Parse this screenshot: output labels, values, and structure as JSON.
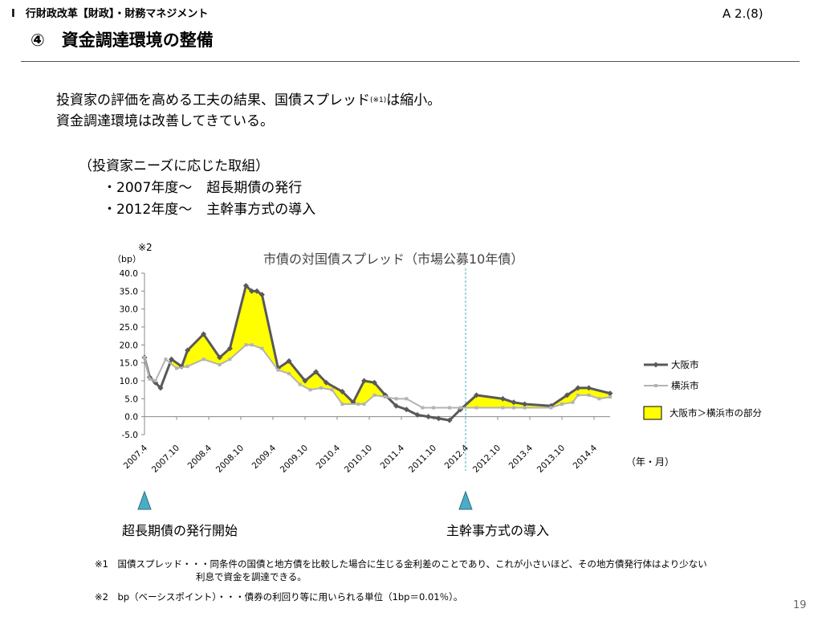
{
  "header": {
    "section": "Ⅰ　行財政改革【財政】・財務マネジメント",
    "page_ref": "A 2.(8)",
    "title": "④　資金調達環境の整備"
  },
  "lead": {
    "line1_a": "投資家の評価を高める工夫の結果、国債スプレッド",
    "line1_note": "(※1)",
    "line1_b": "は縮小。",
    "line2": "資金調達環境は改善してきている。"
  },
  "initiatives": {
    "title": "（投資家ニーズに応じた取組）",
    "items": [
      {
        "period": "・2007年度～",
        "text": "超長期債の発行"
      },
      {
        "period": "・2012年度～",
        "text": "主幹事方式の導入"
      }
    ]
  },
  "chart_data": {
    "type": "line",
    "title": "市債の対国債スプレッド（市場公募10年債）",
    "ylabel": "（bp）",
    "ylabel_note": "※2",
    "xlabel": "（年・月）",
    "ylim": [
      -5,
      40
    ],
    "xlim": [
      2007.25,
      2014.5
    ],
    "yticks": [
      "40.0",
      "35.0",
      "30.0",
      "25.0",
      "20.0",
      "15.0",
      "10.0",
      "5.0",
      "0.0",
      "-5.0"
    ],
    "xticks": [
      {
        "label": "2007.4",
        "x": 2007.25
      },
      {
        "label": "2007.10",
        "x": 2007.75
      },
      {
        "label": "2008.4",
        "x": 2008.25
      },
      {
        "label": "2008.10",
        "x": 2008.75
      },
      {
        "label": "2009.4",
        "x": 2009.25
      },
      {
        "label": "2009.10",
        "x": 2009.75
      },
      {
        "label": "2010.4",
        "x": 2010.25
      },
      {
        "label": "2010.10",
        "x": 2010.75
      },
      {
        "label": "2011.4",
        "x": 2011.25
      },
      {
        "label": "2011.10",
        "x": 2011.75
      },
      {
        "label": "2012.4",
        "x": 2012.25
      },
      {
        "label": "2012.10",
        "x": 2012.75
      },
      {
        "label": "2013.4",
        "x": 2013.25
      },
      {
        "label": "2013.10",
        "x": 2013.75
      },
      {
        "label": "2014.4",
        "x": 2014.25
      }
    ],
    "series": [
      {
        "name": "大阪市",
        "color": "#595959",
        "points": [
          [
            2007.25,
            16.5
          ],
          [
            2007.33,
            11
          ],
          [
            2007.42,
            9.5
          ],
          [
            2007.5,
            8
          ],
          [
            2007.67,
            16
          ],
          [
            2007.83,
            14
          ],
          [
            2007.92,
            18.5
          ],
          [
            2008.17,
            23
          ],
          [
            2008.42,
            16.5
          ],
          [
            2008.58,
            19
          ],
          [
            2008.83,
            36.5
          ],
          [
            2008.92,
            35
          ],
          [
            2009.0,
            35
          ],
          [
            2009.08,
            34
          ],
          [
            2009.33,
            13.5
          ],
          [
            2009.5,
            15.5
          ],
          [
            2009.75,
            10
          ],
          [
            2009.92,
            12.5
          ],
          [
            2010.08,
            9.5
          ],
          [
            2010.33,
            7
          ],
          [
            2010.5,
            4
          ],
          [
            2010.67,
            10
          ],
          [
            2010.83,
            9.5
          ],
          [
            2011.0,
            6
          ],
          [
            2011.17,
            3
          ],
          [
            2011.33,
            2
          ],
          [
            2011.5,
            0.5
          ],
          [
            2011.67,
            0
          ],
          [
            2011.83,
            -0.5
          ],
          [
            2012.0,
            -1
          ],
          [
            2012.17,
            2
          ],
          [
            2012.42,
            6
          ],
          [
            2012.83,
            5
          ],
          [
            2013.0,
            4
          ],
          [
            2013.17,
            3.5
          ],
          [
            2013.58,
            3
          ],
          [
            2013.83,
            6
          ],
          [
            2014.0,
            8
          ],
          [
            2014.17,
            8
          ],
          [
            2014.5,
            6.5
          ]
        ]
      },
      {
        "name": "横浜市",
        "color": "#b3b3b3",
        "points": [
          [
            2007.25,
            16.5
          ],
          [
            2007.33,
            10.5
          ],
          [
            2007.42,
            10
          ],
          [
            2007.58,
            16
          ],
          [
            2007.75,
            13.5
          ],
          [
            2007.92,
            14
          ],
          [
            2008.17,
            16
          ],
          [
            2008.42,
            14.5
          ],
          [
            2008.58,
            16
          ],
          [
            2008.83,
            20
          ],
          [
            2008.92,
            20
          ],
          [
            2009.08,
            19
          ],
          [
            2009.33,
            13
          ],
          [
            2009.5,
            12
          ],
          [
            2009.67,
            9
          ],
          [
            2009.83,
            7.5
          ],
          [
            2010.0,
            8
          ],
          [
            2010.17,
            7.5
          ],
          [
            2010.33,
            3.5
          ],
          [
            2010.58,
            3.5
          ],
          [
            2010.67,
            3.5
          ],
          [
            2010.83,
            6
          ],
          [
            2011.0,
            5.5
          ],
          [
            2011.17,
            5
          ],
          [
            2011.33,
            5
          ],
          [
            2011.58,
            2.5
          ],
          [
            2011.75,
            2.5
          ],
          [
            2012.0,
            2.5
          ],
          [
            2012.17,
            2.5
          ],
          [
            2012.42,
            2.5
          ],
          [
            2012.83,
            2.5
          ],
          [
            2013.0,
            2.5
          ],
          [
            2013.17,
            2.5
          ],
          [
            2013.58,
            2.5
          ],
          [
            2013.75,
            3.5
          ],
          [
            2013.92,
            4
          ],
          [
            2014.0,
            6
          ],
          [
            2014.17,
            6
          ],
          [
            2014.33,
            5
          ],
          [
            2014.5,
            5.5
          ]
        ]
      }
    ],
    "legend": {
      "position": "right",
      "items": [
        {
          "label": "大阪市",
          "kind": "line",
          "color": "#595959"
        },
        {
          "label": "横浜市",
          "kind": "line",
          "color": "#b3b3b3"
        },
        {
          "label": "大阪市＞横浜市の部分",
          "kind": "area",
          "color": "#ffff00"
        }
      ]
    },
    "highlight_color": "#ffff00",
    "event_line": {
      "x": 2012.25,
      "color": "#4bacc6"
    },
    "grid": false
  },
  "markers": [
    {
      "label": "超長期債の発行開始",
      "x": 2007.25,
      "color": "#4bacc6"
    },
    {
      "label": "主幹事方式の導入",
      "x": 2012.25,
      "color": "#4bacc6"
    }
  ],
  "footnotes": {
    "note1": "※1　国債スプレッド・・・同条件の国債と地方債を比較した場合に生じる金利差のことであり、これが小さいほど、その地方債発行体はより少ない",
    "note1_cont": "利息で資金を調達できる。",
    "note2": "※2　bp（ベーシスポイント）・・・債券の利回り等に用いられる単位（1bp＝0.01％）。"
  },
  "page_number": "19"
}
